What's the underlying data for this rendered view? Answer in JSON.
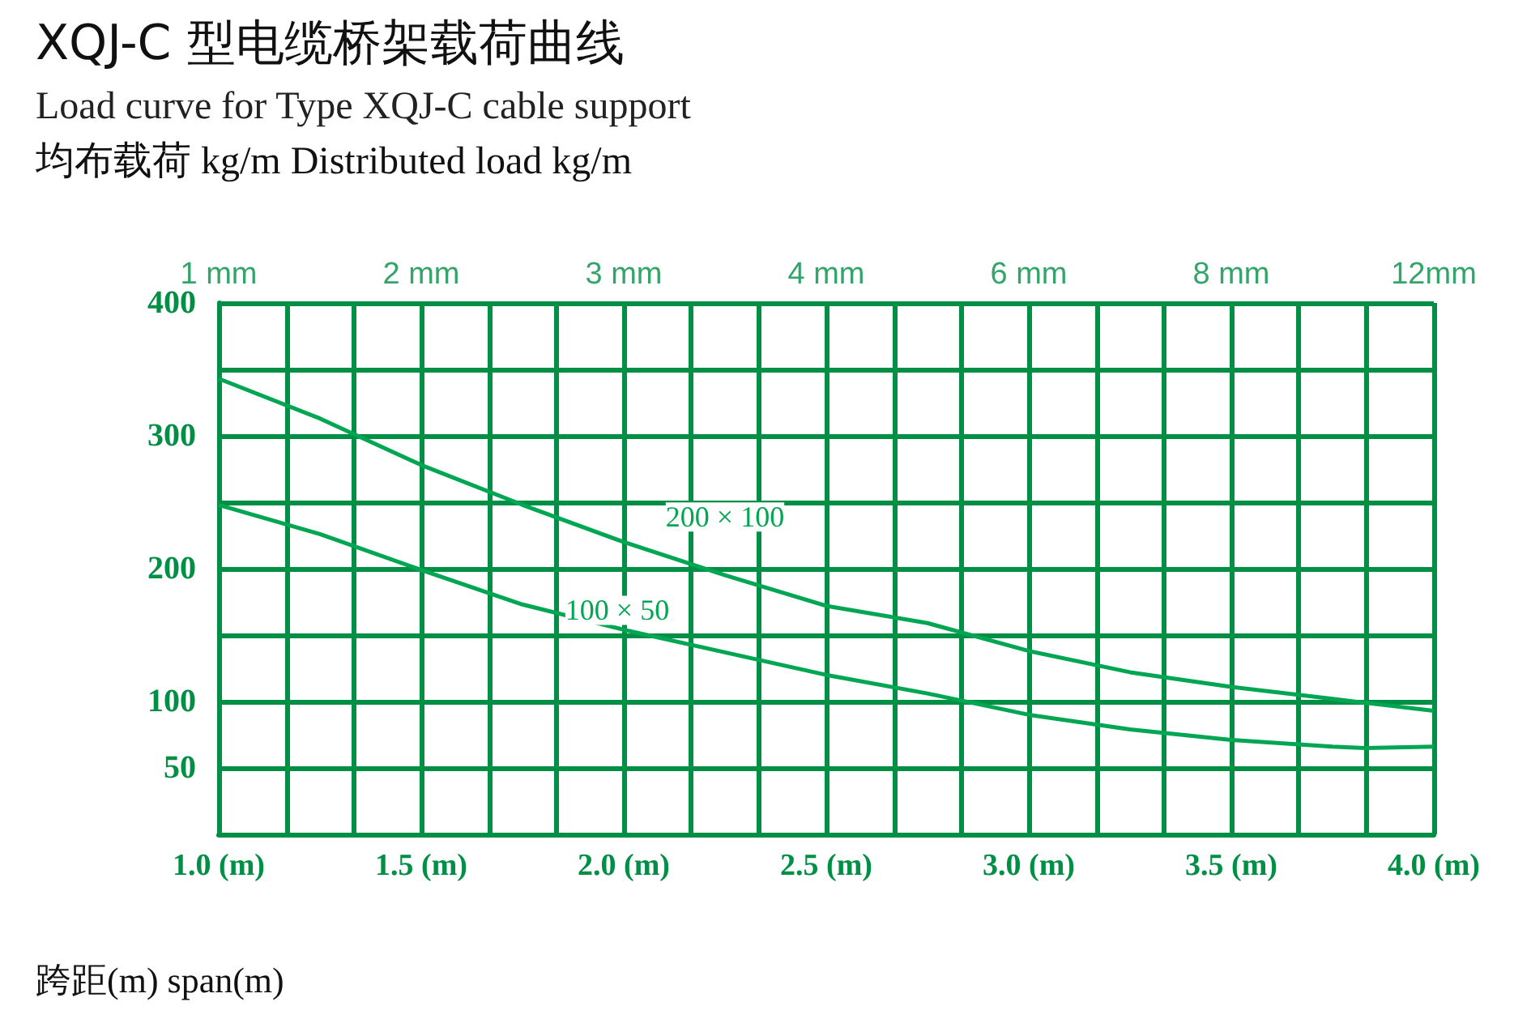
{
  "chart_data": {
    "type": "line",
    "title": "XQJ-C 型电缆桥架载荷曲线",
    "subtitle": "Load curve for Type XQJ-C cable support",
    "ylabel": "均布载荷 kg/m Distributed load kg/m",
    "xlabel": "跨距(m) span(m)",
    "x": [
      1.0,
      1.25,
      1.5,
      1.75,
      2.0,
      2.25,
      2.5,
      2.75,
      3.0,
      3.25,
      3.5,
      3.75,
      3.83,
      4.0
    ],
    "series": [
      {
        "name": "200 × 100",
        "color": "#00a651",
        "values": [
          343,
          313,
          278,
          248,
          220,
          195,
          172,
          159,
          138,
          122,
          111,
          102,
          99,
          93
        ]
      },
      {
        "name": "100 × 50",
        "color": "#00a651",
        "values": [
          248,
          226,
          199,
          173,
          154,
          137,
          120,
          106,
          90,
          79,
          71,
          66,
          65,
          66
        ]
      }
    ],
    "xlim": [
      1,
      4
    ],
    "ylim": [
      0,
      400
    ],
    "xticks": [
      {
        "value": 1.0,
        "label": "1.0 (m)"
      },
      {
        "value": 1.167,
        "label": null
      },
      {
        "value": 1.333,
        "label": null
      },
      {
        "value": 1.5,
        "label": "1.5 (m)"
      },
      {
        "value": 1.667,
        "label": null
      },
      {
        "value": 1.833,
        "label": null
      },
      {
        "value": 2.0,
        "label": "2.0 (m)"
      },
      {
        "value": 2.167,
        "label": null
      },
      {
        "value": 2.333,
        "label": null
      },
      {
        "value": 2.5,
        "label": "2.5 (m)"
      },
      {
        "value": 2.667,
        "label": null
      },
      {
        "value": 2.833,
        "label": null
      },
      {
        "value": 3.0,
        "label": "3.0 (m)"
      },
      {
        "value": 3.167,
        "label": null
      },
      {
        "value": 3.333,
        "label": null
      },
      {
        "value": 3.5,
        "label": "3.5 (m)"
      },
      {
        "value": 3.667,
        "label": null
      },
      {
        "value": 3.833,
        "label": null
      },
      {
        "value": 4.0,
        "label": "4.0 (m)"
      }
    ],
    "yticks": [
      {
        "value": 0,
        "label": null
      },
      50,
      100,
      {
        "value": 150,
        "label": null
      },
      200,
      {
        "value": 250,
        "label": null
      },
      300,
      {
        "value": 350,
        "label": null
      },
      400
    ],
    "annotations": [
      "1 mm",
      "2 mm",
      "3 mm",
      "4 mm",
      "6 mm",
      "8 mm",
      "12mm"
    ],
    "grid": true,
    "legend": false,
    "marker": "none",
    "line_style": "solid"
  }
}
